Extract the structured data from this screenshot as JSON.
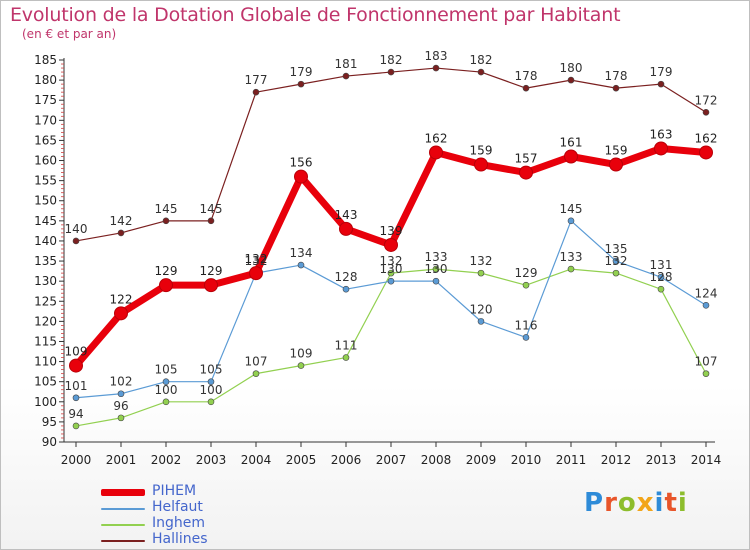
{
  "title": "Evolution de la Dotation Globale de Fonctionnement par Habitant",
  "subtitle": "(en € et par an)",
  "logo": {
    "text": "Proxiti",
    "letter_colors": [
      "#2e8bd8",
      "#e8552a",
      "#8dbd2c",
      "#f2a51a",
      "#2e8bd8",
      "#e8552a",
      "#8dbd2c"
    ]
  },
  "chart_data": {
    "type": "line",
    "title": "Evolution de la Dotation Globale de Fonctionnement par Habitant",
    "subtitle": "(en € et par an)",
    "x": [
      "2000",
      "2001",
      "2002",
      "2003",
      "2004",
      "2005",
      "2006",
      "2007",
      "2008",
      "2009",
      "2010",
      "2011",
      "2012",
      "2013",
      "2014"
    ],
    "ylim": [
      90,
      185
    ],
    "yticks": [
      90,
      95,
      100,
      105,
      110,
      115,
      120,
      125,
      130,
      135,
      140,
      145,
      150,
      155,
      160,
      165,
      170,
      175,
      180,
      185
    ],
    "grid": false,
    "legend_position": "bottom-left",
    "series": [
      {
        "name": "PIHEM",
        "color": "#e8000b",
        "values": [
          109,
          122,
          129,
          129,
          132,
          156,
          143,
          139,
          162,
          159,
          157,
          161,
          159,
          163,
          162
        ]
      },
      {
        "name": "Helfaut",
        "color": "#5b9bd5",
        "values": [
          101,
          102,
          105,
          105,
          132,
          134,
          128,
          130,
          130,
          120,
          116,
          145,
          135,
          131,
          124
        ]
      },
      {
        "name": "Inghem",
        "color": "#92d050",
        "values": [
          94,
          96,
          100,
          100,
          107,
          109,
          111,
          132,
          133,
          132,
          129,
          133,
          132,
          128,
          107
        ]
      },
      {
        "name": "Hallines",
        "color": "#7b2020",
        "values": [
          140,
          142,
          145,
          145,
          177,
          179,
          181,
          182,
          183,
          182,
          178,
          180,
          178,
          179,
          172
        ]
      }
    ]
  }
}
